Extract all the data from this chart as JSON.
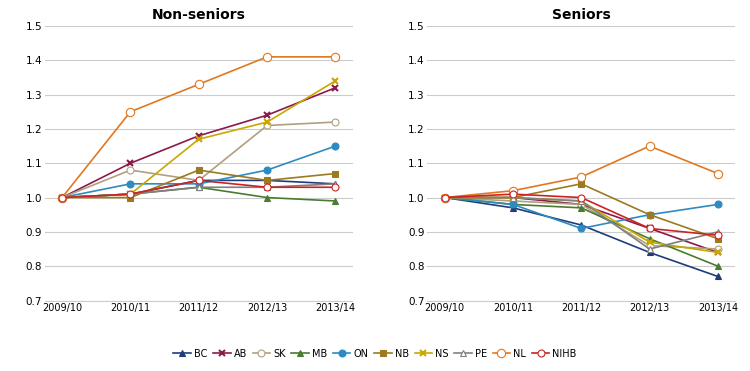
{
  "years": [
    "2009/10",
    "2010/11",
    "2011/12",
    "2012/13",
    "2013/14"
  ],
  "title_left": "Non-seniors",
  "title_right": "Seniors",
  "ylim": [
    0.7,
    1.5
  ],
  "yticks": [
    0.7,
    0.8,
    0.9,
    1.0,
    1.1,
    1.2,
    1.3,
    1.4,
    1.5
  ],
  "non_seniors": {
    "BC": [
      1.0,
      1.01,
      1.05,
      1.05,
      1.04
    ],
    "AB": [
      1.0,
      1.1,
      1.18,
      1.24,
      1.32
    ],
    "SK": [
      1.0,
      1.08,
      1.05,
      1.21,
      1.22
    ],
    "MB": [
      1.0,
      1.01,
      1.03,
      1.0,
      0.99
    ],
    "ON": [
      1.0,
      1.04,
      1.04,
      1.08,
      1.15
    ],
    "NB": [
      1.0,
      1.0,
      1.08,
      1.05,
      1.07
    ],
    "NS": [
      1.0,
      1.01,
      1.17,
      1.22,
      1.34
    ],
    "PE": [
      1.0,
      1.01,
      1.03,
      1.03,
      1.04
    ],
    "NL": [
      1.0,
      1.25,
      1.33,
      1.41,
      1.41
    ],
    "NIHB": [
      1.0,
      1.01,
      1.05,
      1.03,
      1.03
    ]
  },
  "seniors": {
    "BC": [
      1.0,
      0.97,
      0.92,
      0.84,
      0.77
    ],
    "AB": [
      1.0,
      1.0,
      0.98,
      0.91,
      0.84
    ],
    "SK": [
      1.0,
      0.99,
      0.98,
      0.86,
      0.85
    ],
    "MB": [
      1.0,
      0.98,
      0.97,
      0.88,
      0.8
    ],
    "ON": [
      1.0,
      0.98,
      0.91,
      0.95,
      0.98
    ],
    "NB": [
      1.0,
      1.0,
      1.04,
      0.95,
      0.88
    ],
    "NS": [
      1.0,
      1.0,
      0.99,
      0.87,
      0.84
    ],
    "PE": [
      1.0,
      1.0,
      0.99,
      0.85,
      0.9
    ],
    "NL": [
      1.0,
      1.02,
      1.06,
      1.15,
      1.07
    ],
    "NIHB": [
      1.0,
      1.01,
      1.0,
      0.91,
      0.89
    ]
  },
  "series_styles": {
    "BC": {
      "color": "#1f3d7a",
      "marker": "^",
      "fillstyle": "full",
      "markersize": 5
    },
    "AB": {
      "color": "#8b1a4a",
      "marker": "x",
      "fillstyle": "full",
      "markersize": 5
    },
    "SK": {
      "color": "#b0a080",
      "marker": "o",
      "fillstyle": "none",
      "markersize": 5
    },
    "MB": {
      "color": "#4a7c2f",
      "marker": "^",
      "fillstyle": "full",
      "markersize": 5
    },
    "ON": {
      "color": "#2e8bc0",
      "marker": "o",
      "fillstyle": "full",
      "markersize": 5
    },
    "NB": {
      "color": "#9b7a20",
      "marker": "s",
      "fillstyle": "full",
      "markersize": 4
    },
    "NS": {
      "color": "#c8a800",
      "marker": "x",
      "fillstyle": "full",
      "markersize": 5
    },
    "PE": {
      "color": "#808080",
      "marker": "^",
      "fillstyle": "none",
      "markersize": 5
    },
    "NL": {
      "color": "#e07820",
      "marker": "o",
      "fillstyle": "none",
      "markersize": 6
    },
    "NIHB": {
      "color": "#cc2222",
      "marker": "o",
      "fillstyle": "none",
      "markersize": 5
    }
  },
  "legend_order": [
    "BC",
    "AB",
    "SK",
    "MB",
    "ON",
    "NB",
    "NS",
    "PE",
    "NL",
    "NIHB"
  ],
  "background_color": "#ffffff",
  "grid_color": "#cccccc",
  "linewidth": 1.2
}
